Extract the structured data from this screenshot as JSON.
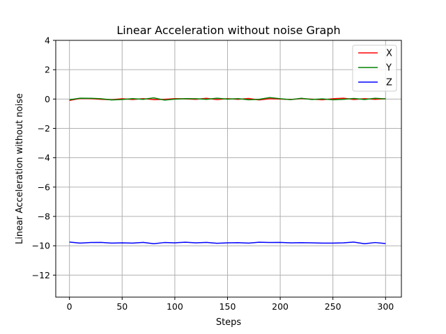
{
  "chart_data": {
    "type": "line",
    "title": "Linear Acceleration without noise Graph",
    "xlabel": "Steps",
    "ylabel": "Linear Acceleration without noise",
    "xlim": [
      -13,
      315
    ],
    "ylim": [
      -13.5,
      4
    ],
    "xticks": [
      0,
      50,
      100,
      150,
      200,
      250,
      300
    ],
    "xtick_labels": [
      "0",
      "50",
      "100",
      "150",
      "200",
      "250",
      "300"
    ],
    "yticks": [
      4,
      2,
      0,
      -2,
      -4,
      -6,
      -8,
      -10,
      -12
    ],
    "ytick_labels": [
      "4",
      "2",
      "0",
      "−2",
      "−4",
      "−6",
      "−8",
      "−10",
      "−12"
    ],
    "grid": true,
    "legend_position": "top-right",
    "x": [
      0,
      10,
      20,
      30,
      40,
      50,
      60,
      70,
      80,
      90,
      100,
      110,
      120,
      130,
      140,
      150,
      160,
      170,
      180,
      190,
      200,
      210,
      220,
      230,
      240,
      250,
      260,
      270,
      280,
      290,
      300
    ],
    "series": [
      {
        "name": "X",
        "color": "#ff0000",
        "values": [
          -0.1,
          0.04,
          0.03,
          -0.02,
          -0.05,
          0.02,
          -0.03,
          0.03,
          -0.04,
          -0.02,
          0.03,
          0.01,
          -0.02,
          0.05,
          -0.04,
          0.03,
          -0.02,
          0.04,
          -0.06,
          0.02,
          0.0,
          -0.03,
          0.03,
          -0.01,
          -0.05,
          0.02,
          0.06,
          -0.03,
          0.03,
          -0.02,
          0.02
        ]
      },
      {
        "name": "Y",
        "color": "#008000",
        "values": [
          -0.05,
          0.06,
          0.05,
          0.02,
          -0.06,
          -0.03,
          0.03,
          -0.02,
          0.08,
          -0.07,
          -0.01,
          0.03,
          0.02,
          -0.02,
          0.06,
          -0.01,
          0.03,
          -0.05,
          -0.02,
          0.1,
          0.02,
          -0.04,
          0.05,
          -0.03,
          0.01,
          -0.05,
          -0.02,
          0.04,
          -0.03,
          0.05,
          0.01
        ]
      },
      {
        "name": "Z",
        "color": "#0000ff",
        "values": [
          -9.75,
          -9.82,
          -9.78,
          -9.77,
          -9.82,
          -9.8,
          -9.82,
          -9.77,
          -9.86,
          -9.78,
          -9.8,
          -9.76,
          -9.8,
          -9.77,
          -9.83,
          -9.8,
          -9.79,
          -9.82,
          -9.76,
          -9.78,
          -9.77,
          -9.8,
          -9.79,
          -9.8,
          -9.82,
          -9.82,
          -9.8,
          -9.75,
          -9.86,
          -9.78,
          -9.85
        ]
      }
    ]
  }
}
